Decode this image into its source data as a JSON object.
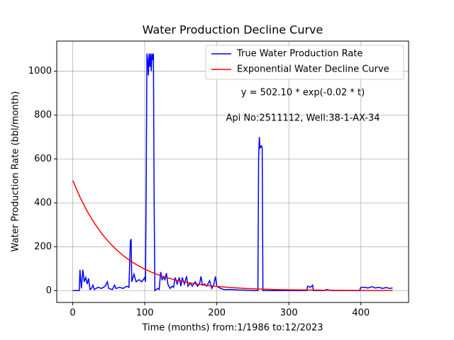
{
  "chart_data": {
    "type": "line",
    "title": "Water Production Decline Curve",
    "xlabel": "Time (months) from:1/1986 to:12/2023",
    "ylabel": "Water Production Rate (bbl/month)",
    "annotations": [
      "y = 502.10 * exp(-0.02 * t)",
      "Api No:2511112, Well:38-1-AX-34"
    ],
    "xlim": [
      -22.2,
      466.2
    ],
    "xticks": [
      0,
      100,
      200,
      300,
      400
    ],
    "ylim": [
      -54,
      1137
    ],
    "yticks": [
      0,
      200,
      400,
      600,
      800,
      1000
    ],
    "grid": true,
    "legend": "upper right",
    "series": [
      {
        "name": "True Water Production Rate",
        "color": "#0000ff",
        "x": [
          0,
          9,
          10,
          12,
          14,
          16,
          18,
          20,
          22,
          24,
          26,
          28,
          30,
          35,
          40,
          45,
          48,
          50,
          55,
          58,
          60,
          65,
          70,
          75,
          78,
          80,
          81,
          82,
          85,
          88,
          92,
          96,
          100,
          101,
          102,
          103,
          104,
          105,
          106,
          107,
          108,
          109,
          110,
          111,
          112,
          113,
          114,
          118,
          120,
          122,
          124,
          126,
          128,
          130,
          132,
          135,
          138,
          140,
          142,
          145,
          148,
          150,
          152,
          155,
          158,
          160,
          163,
          166,
          170,
          173,
          176,
          178,
          180,
          183,
          186,
          190,
          193,
          196,
          198,
          200,
          205,
          210,
          220,
          230,
          240,
          250,
          257,
          258,
          259,
          260,
          262,
          263,
          264,
          270,
          300,
          325,
          326,
          330,
          333,
          334,
          350,
          352,
          360,
          398,
          400,
          405,
          410,
          415,
          420,
          425,
          430,
          435,
          440,
          444
        ],
        "values": [
          0,
          0,
          95,
          10,
          95,
          40,
          60,
          30,
          55,
          5,
          10,
          25,
          5,
          15,
          10,
          20,
          40,
          10,
          5,
          25,
          10,
          15,
          10,
          20,
          15,
          225,
          235,
          40,
          75,
          40,
          50,
          40,
          60,
          40,
          500,
          1080,
          1050,
          980,
          1080,
          1020,
          1080,
          1000,
          1080,
          1050,
          1080,
          400,
          0,
          10,
          5,
          85,
          50,
          60,
          50,
          80,
          30,
          10,
          20,
          15,
          60,
          30,
          60,
          20,
          60,
          30,
          65,
          20,
          35,
          20,
          40,
          20,
          30,
          65,
          25,
          30,
          20,
          45,
          10,
          30,
          65,
          20,
          10,
          5,
          5,
          3,
          2,
          0,
          0,
          600,
          700,
          650,
          660,
          650,
          0,
          0,
          0,
          0,
          20,
          15,
          25,
          0,
          0,
          5,
          0,
          0,
          15,
          15,
          12,
          18,
          12,
          15,
          10,
          14,
          10,
          12
        ]
      },
      {
        "name": "Exponential Water Decline Curve",
        "color": "#ff0000",
        "x": [
          0,
          10,
          20,
          30,
          40,
          50,
          60,
          70,
          80,
          90,
          100,
          110,
          120,
          130,
          140,
          150,
          160,
          170,
          180,
          190,
          200,
          220,
          240,
          260,
          280,
          300,
          320,
          340,
          360,
          380,
          400,
          420,
          444
        ],
        "values": [
          502.1,
          426.3,
          361.9,
          307.2,
          260.8,
          221.4,
          188.0,
          159.6,
          135.5,
          115.0,
          97.6,
          82.9,
          70.4,
          59.7,
          50.7,
          43.1,
          36.5,
          31.0,
          26.3,
          22.4,
          19.0,
          13.7,
          9.9,
          7.1,
          5.1,
          3.7,
          2.7,
          1.9,
          1.4,
          1.0,
          0.7,
          0.5,
          0.4
        ]
      }
    ]
  }
}
